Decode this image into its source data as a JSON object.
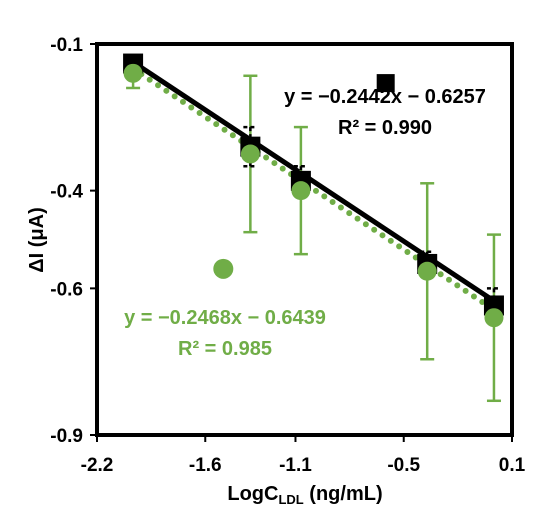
{
  "chart_data": {
    "type": "scatter",
    "xlabel": "LogC",
    "xlabel_sub": "LDL",
    "xlabel_unit": " (ng/mL)",
    "ylabel": "ΔI (μA)",
    "xlim": [
      -2.2,
      0.1
    ],
    "ylim": [
      -0.9,
      -0.1
    ],
    "x_ticks": [
      -2.2,
      -1.6,
      -1.1,
      -0.5,
      0.1
    ],
    "x_tick_labels": [
      "-2.2",
      "-1.6",
      "-1.1",
      "-0.5",
      "0.1"
    ],
    "y_ticks": [
      -0.1,
      -0.4,
      -0.6,
      -0.9
    ],
    "y_tick_labels": [
      "-0.1",
      "-0.4",
      "-0.6",
      "-0.9"
    ],
    "grid": false,
    "series": [
      {
        "marker": "square",
        "color": "#000000",
        "points": [
          {
            "x": -2.0,
            "y": -0.14,
            "err": 0.01
          },
          {
            "x": -1.35,
            "y": -0.31,
            "err": 0.04
          },
          {
            "x": -1.07,
            "y": -0.38,
            "err": 0.03
          },
          {
            "x": -0.37,
            "y": -0.55,
            "err": 0.025
          },
          {
            "x": 0.0,
            "y": -0.635,
            "err": 0.035
          }
        ],
        "fit": {
          "x0": -2.0,
          "y0": -0.1371,
          "x1": 0.0,
          "y1": -0.6257,
          "style": "solid"
        },
        "equation": "y = −0.2442x − 0.6257",
        "r2": "R² = 0.990"
      },
      {
        "marker": "circle",
        "color": "#70AD47",
        "points": [
          {
            "x": -2.0,
            "y": -0.16,
            "err": 0.03
          },
          {
            "x": -1.35,
            "y": -0.325,
            "err": 0.16
          },
          {
            "x": -1.07,
            "y": -0.4,
            "err": 0.13
          },
          {
            "x": -0.37,
            "y": -0.565,
            "err": 0.18
          },
          {
            "x": 0.0,
            "y": -0.66,
            "err": 0.17
          }
        ],
        "fit": {
          "x0": -2.0,
          "y0": -0.1503,
          "x1": 0.0,
          "y1": -0.6439,
          "style": "dotted"
        },
        "equation": "y = −0.2468x − 0.6439",
        "r2": "R² = 0.985"
      }
    ],
    "legend_marker_positions": [
      {
        "series": 0,
        "x": -0.6,
        "y": -0.18
      },
      {
        "series": 1,
        "x": -1.5,
        "y": -0.56
      }
    ]
  }
}
